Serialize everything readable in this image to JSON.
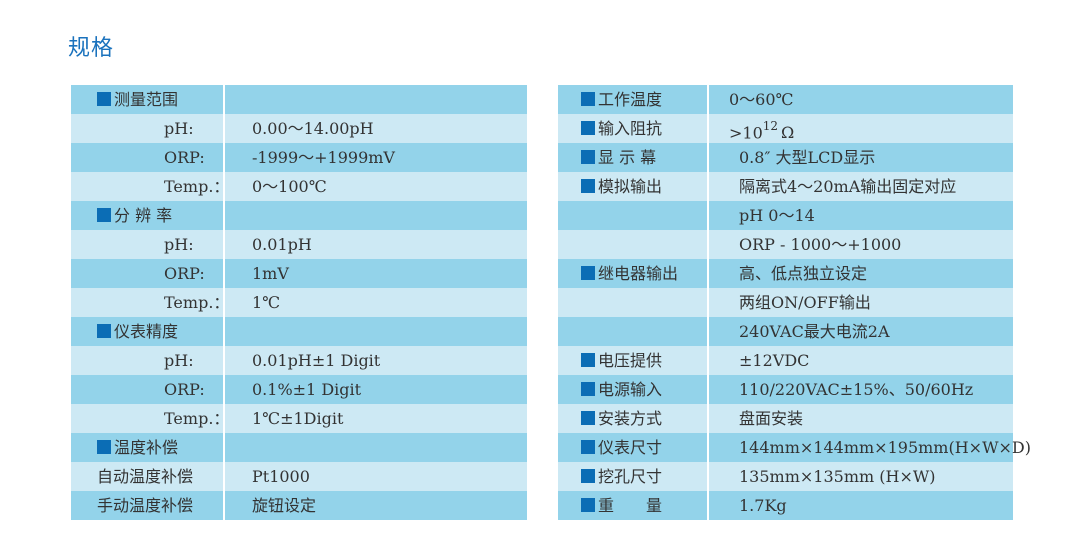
{
  "title": "规格",
  "colors": {
    "row_dark": "#93d3ea",
    "row_light": "#cde9f4",
    "bullet": "#0b6db5",
    "title": "#1a72bd"
  },
  "left_table": [
    {
      "label": "测量范围",
      "type": "head",
      "value": ""
    },
    {
      "label": "pH:",
      "type": "sub",
      "value": "0.00～14.00pH"
    },
    {
      "label": "ORP:",
      "type": "sub",
      "value": "-1999～+1999mV"
    },
    {
      "label": "Temp.：",
      "type": "sub",
      "value": "0～100℃"
    },
    {
      "label": "分 辨 率",
      "type": "head",
      "value": ""
    },
    {
      "label": "pH:",
      "type": "sub",
      "value": "0.01pH"
    },
    {
      "label": "ORP:",
      "type": "sub",
      "value": "1mV"
    },
    {
      "label": "Temp.：",
      "type": "sub",
      "value": "1℃"
    },
    {
      "label": "仪表精度",
      "type": "head",
      "value": ""
    },
    {
      "label": "pH:",
      "type": "sub",
      "value": "0.01pH±1 Digit"
    },
    {
      "label": "ORP:",
      "type": "sub",
      "value": "0.1%±1 Digit"
    },
    {
      "label": "Temp.：",
      "type": "sub",
      "value": "1℃±1Digit"
    },
    {
      "label": "温度补偿",
      "type": "head",
      "value": ""
    },
    {
      "label": "自动温度补偿",
      "type": "plain",
      "value": "Pt1000"
    },
    {
      "label": "手动温度补偿",
      "type": "plain",
      "value": "旋钮设定"
    }
  ],
  "right_table": [
    {
      "label": "工作温度",
      "type": "head",
      "value": "0～60℃"
    },
    {
      "label": "输入阻抗",
      "type": "head",
      "value": ">10",
      "sup": "12",
      "suffix": "Ω"
    },
    {
      "label": "显 示 幕",
      "type": "head",
      "value": "0.8″ 大型LCD显示"
    },
    {
      "label": "模拟输出",
      "type": "head",
      "value": "隔离式4～20mA输出固定对应"
    },
    {
      "label": "",
      "type": "empty",
      "value": "pH  0～14"
    },
    {
      "label": "",
      "type": "empty",
      "value": "ORP  - 1000～+1000"
    },
    {
      "label": "继电器输出",
      "type": "head",
      "value": "高、低点独立设定"
    },
    {
      "label": "",
      "type": "empty",
      "value": "两组ON/OFF输出"
    },
    {
      "label": "",
      "type": "empty",
      "value": "240VAC最大电流2A"
    },
    {
      "label": "电压提供",
      "type": "head",
      "value": "±12VDC"
    },
    {
      "label": "电源输入",
      "type": "head",
      "value": "110/220VAC±15%、50/60Hz"
    },
    {
      "label": "安装方式",
      "type": "head",
      "value": "盘面安装"
    },
    {
      "label": "仪表尺寸",
      "type": "head",
      "value": "144mm×144mm×195mm(H×W×D)"
    },
    {
      "label": "挖孔尺寸",
      "type": "head",
      "value": "135mm×135mm (H×W)"
    },
    {
      "label": "重　　量",
      "type": "head",
      "value": "1.7Kg"
    }
  ]
}
